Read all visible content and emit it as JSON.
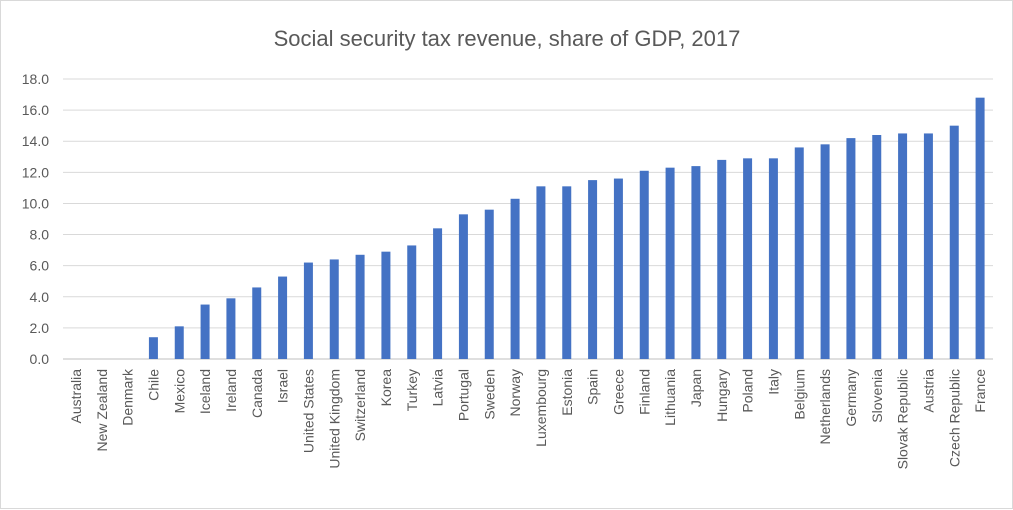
{
  "chart_data": {
    "type": "bar",
    "title": "Social security tax revenue, share of GDP, 2017",
    "xlabel": "",
    "ylabel": "",
    "ylim": [
      0,
      18
    ],
    "yticks": [
      "0.0",
      "2.0",
      "4.0",
      "6.0",
      "8.0",
      "10.0",
      "12.0",
      "14.0",
      "16.0",
      "18.0"
    ],
    "grid": true,
    "bar_color": "#4472C4",
    "categories": [
      "Australia",
      "New Zealand",
      "Denmark",
      "Chile",
      "Mexico",
      "Iceland",
      "Ireland",
      "Canada",
      "Israel",
      "United States",
      "United Kingdom",
      "Switzerland",
      "Korea",
      "Turkey",
      "Latvia",
      "Portugal",
      "Sweden",
      "Norway",
      "Luxembourg",
      "Estonia",
      "Spain",
      "Greece",
      "Finland",
      "Lithuania",
      "Japan",
      "Hungary",
      "Poland",
      "Italy",
      "Belgium",
      "Netherlands",
      "Germany",
      "Slovenia",
      "Slovak Republic",
      "Austria",
      "Czech Republic",
      "France"
    ],
    "values": [
      0,
      0,
      0,
      1.4,
      2.1,
      3.5,
      3.9,
      4.6,
      5.3,
      6.2,
      6.4,
      6.7,
      6.9,
      7.3,
      8.4,
      9.3,
      9.6,
      10.3,
      11.1,
      11.1,
      11.5,
      11.6,
      12.1,
      12.3,
      12.4,
      12.8,
      12.9,
      12.9,
      13.6,
      13.8,
      14.2,
      14.4,
      14.5,
      14.5,
      15.0,
      16.8
    ]
  }
}
